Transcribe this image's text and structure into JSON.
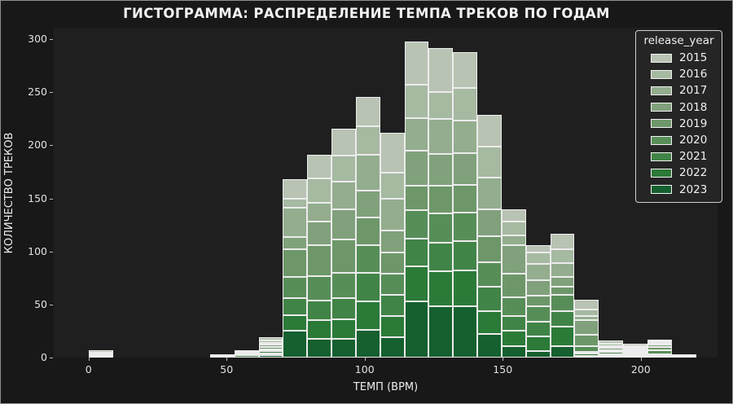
{
  "title": "ГИСТОГРАММА: РАСПРЕДЕЛЕНИЕ ТЕМПА ТРЕКОВ ПО ГОДАМ",
  "chart_data": {
    "type": "bar",
    "subtype": "stacked-histogram",
    "title": "ГИСТОГРАММА: РАСПРЕДЕЛЕНИЕ ТЕМПА ТРЕКОВ ПО ГОДАМ",
    "xlabel": "ТЕМП (BPM)",
    "ylabel": "КОЛИЧЕСТВО ТРЕКОВ",
    "x_ticks": [
      0,
      50,
      100,
      150,
      200
    ],
    "y_ticks": [
      0,
      50,
      100,
      150,
      200,
      250,
      300
    ],
    "xlim": [
      -12.6,
      227.8
    ],
    "ylim": [
      0,
      310.8
    ],
    "grid": false,
    "bin_width": 8.8,
    "legend": {
      "title": "release_year",
      "position": "upper right",
      "entries": [
        "2015",
        "2016",
        "2017",
        "2018",
        "2019",
        "2020",
        "2021",
        "2022",
        "2023"
      ]
    },
    "series_names": [
      "2015",
      "2016",
      "2017",
      "2018",
      "2019",
      "2020",
      "2021",
      "2022",
      "2023"
    ],
    "colors": [
      "#b8c3b3",
      "#a6b9a1",
      "#93ad8e",
      "#80a17b",
      "#6d9769",
      "#578e58",
      "#418447",
      "#2b7a38",
      "#15602e"
    ],
    "stack_order": "last-series-at-bottom",
    "bins": [
      {
        "x0": 0.0,
        "values": [
          2,
          1,
          1,
          1,
          0,
          0,
          0,
          0,
          0
        ],
        "total": 5
      },
      {
        "x0": 44.0,
        "values": [
          1,
          1,
          0,
          0,
          0,
          0,
          0,
          0,
          0
        ],
        "total": 2
      },
      {
        "x0": 52.8,
        "values": [
          0,
          0,
          0,
          1,
          1,
          1,
          2,
          0,
          0
        ],
        "total": 5
      },
      {
        "x0": 61.6,
        "values": [
          3,
          2,
          2,
          2,
          2,
          2,
          2,
          2,
          2
        ],
        "total": 19
      },
      {
        "x0": 70.4,
        "values": [
          18,
          9,
          27,
          12,
          26,
          20,
          16,
          15,
          25
        ],
        "total": 168
      },
      {
        "x0": 79.2,
        "values": [
          22,
          23,
          18,
          22,
          29,
          23,
          19,
          17,
          18
        ],
        "total": 191
      },
      {
        "x0": 88.0,
        "values": [
          26,
          24,
          26,
          29,
          31,
          24,
          20,
          18,
          18
        ],
        "total": 216
      },
      {
        "x0": 96.8,
        "values": [
          28,
          27,
          34,
          25,
          26,
          26,
          27,
          27,
          26
        ],
        "total": 246
      },
      {
        "x0": 105.6,
        "values": [
          38,
          24,
          30,
          21,
          20,
          20,
          20,
          20,
          19
        ],
        "total": 212
      },
      {
        "x0": 114.4,
        "values": [
          41,
          31,
          31,
          33,
          23,
          27,
          26,
          33,
          53
        ],
        "total": 298
      },
      {
        "x0": 123.2,
        "values": [
          42,
          25,
          33,
          30,
          26,
          28,
          27,
          33,
          48
        ],
        "total": 292
      },
      {
        "x0": 132.0,
        "values": [
          34,
          31,
          30,
          30,
          26,
          27,
          28,
          34,
          48
        ],
        "total": 288
      },
      {
        "x0": 140.8,
        "values": [
          30,
          29,
          30,
          26,
          24,
          23,
          23,
          22,
          22
        ],
        "total": 229
      },
      {
        "x0": 149.6,
        "values": [
          12,
          13,
          9,
          27,
          22,
          18,
          14,
          14,
          11
        ],
        "total": 140
      },
      {
        "x0": 158.4,
        "values": [
          7,
          11,
          15,
          15,
          10,
          14,
          14,
          14,
          6
        ],
        "total": 106
      },
      {
        "x0": 167.2,
        "values": [
          15,
          13,
          13,
          9,
          8,
          15,
          15,
          18,
          11
        ],
        "total": 117
      },
      {
        "x0": 176.0,
        "values": [
          9,
          6,
          4,
          14,
          11,
          5,
          2,
          2,
          1
        ],
        "total": 54
      },
      {
        "x0": 184.8,
        "values": [
          3,
          2,
          2,
          2,
          2,
          2,
          1,
          1,
          0
        ],
        "total": 15
      },
      {
        "x0": 193.6,
        "values": [
          2,
          1,
          1,
          1,
          1,
          1,
          1,
          1,
          0
        ],
        "total": 9
      },
      {
        "x0": 202.4,
        "values": [
          2,
          1,
          1,
          2,
          3,
          4,
          1,
          1,
          0
        ],
        "total": 15
      },
      {
        "x0": 211.2,
        "values": [
          1,
          0,
          0,
          0,
          1,
          0,
          0,
          0,
          0
        ],
        "total": 2
      }
    ]
  }
}
